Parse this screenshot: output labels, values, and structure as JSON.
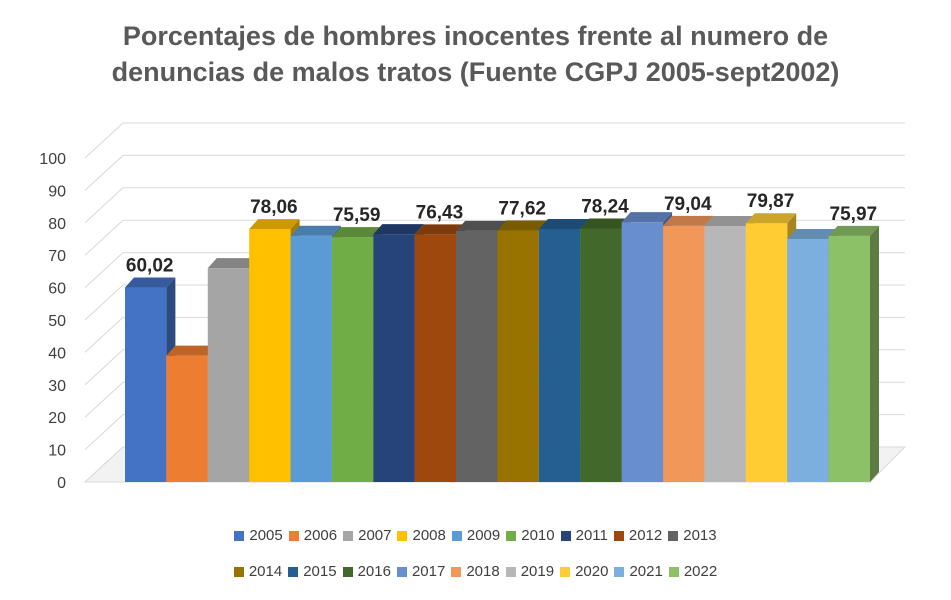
{
  "chart_data": {
    "type": "bar",
    "title_line1": "Porcentajes de hombres inocentes frente al numero de",
    "title_line2": "denuncias de malos tratos (Fuente CGPJ 2005-sept2002)",
    "xlabel": "",
    "ylabel": "",
    "ylim": [
      0,
      100
    ],
    "yticks": [
      "0",
      "10",
      "20",
      "30",
      "40",
      "50",
      "60",
      "70",
      "80",
      "90",
      "100"
    ],
    "grid": true,
    "legend_position": "bottom",
    "categories": [
      "2005",
      "2006",
      "2007",
      "2008",
      "2009",
      "2010",
      "2011",
      "2012",
      "2013",
      "2014",
      "2015",
      "2016",
      "2017",
      "2018",
      "2019",
      "2020",
      "2021",
      "2022"
    ],
    "values": [
      60.02,
      39,
      66,
      78.06,
      76,
      75.59,
      76.5,
      76.43,
      77.5,
      77.62,
      78.1,
      78.24,
      80.2,
      79.04,
      79,
      79.87,
      75,
      75.97
    ],
    "data_labels": [
      "60,02",
      "",
      "",
      "78,06",
      "",
      "75,59",
      "",
      "76,43",
      "",
      "77,62",
      "",
      "78,24",
      "",
      "79,04",
      "",
      "79,87",
      "",
      "75,97"
    ],
    "colors": [
      "#4472C4",
      "#ED7D31",
      "#A5A5A5",
      "#FFC000",
      "#5B9BD5",
      "#70AD47",
      "#264478",
      "#9E480E",
      "#636363",
      "#997300",
      "#255E91",
      "#43682B",
      "#698ED0",
      "#F1975A",
      "#B7B7B7",
      "#FFCD33",
      "#7CAFDD",
      "#8CC168"
    ]
  }
}
